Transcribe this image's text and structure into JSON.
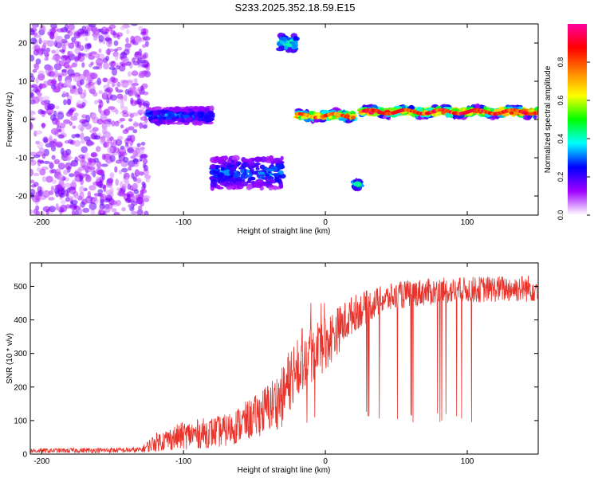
{
  "figure_title": "S233.2025.352.18.59.E15",
  "chart_data": [
    {
      "type": "heatmap",
      "title": "S233.2025.352.18.59.E15",
      "xlabel": "Height of straight line (km)",
      "ylabel": "Frequency (Hz)",
      "xlim": [
        -208,
        150
      ],
      "ylim": [
        -25,
        25
      ],
      "xticks": [
        -200,
        -100,
        0,
        100
      ],
      "yticks": [
        -20,
        -10,
        0,
        10,
        20
      ],
      "colorbar": {
        "label": "Normalized spectral amplitude",
        "range": [
          0,
          1
        ],
        "ticks": [
          0.0,
          0.2,
          0.4,
          0.6,
          0.8
        ],
        "colormap": [
          "#ffffff",
          "#a000ff",
          "#0000ff",
          "#00ffff",
          "#00ff00",
          "#ffff00",
          "#ff8000",
          "#ff0000",
          "#ff00a0"
        ]
      },
      "regions": [
        {
          "name": "scattered noise",
          "x": [
            -208,
            -125
          ],
          "f": [
            -25,
            25
          ],
          "amp": 0.12
        },
        {
          "name": "band 1",
          "x": [
            -125,
            -80
          ],
          "f_center": 1,
          "f_width": 4,
          "amp": 0.3
        },
        {
          "name": "band 2",
          "x": [
            -80,
            -30
          ],
          "f_center": -14,
          "f_width": 8,
          "amp": 0.3
        },
        {
          "name": "spot A",
          "x": [
            -32,
            -20
          ],
          "f_center": 20,
          "f_width": 4,
          "amp": 0.45
        },
        {
          "name": "spot B",
          "x": [
            20,
            25
          ],
          "f_center": -17,
          "f_width": 2,
          "amp": 0.45
        },
        {
          "name": "line 1",
          "x": [
            -20,
            20
          ],
          "f_center": 1,
          "f_width": 2,
          "amp": 0.75
        },
        {
          "name": "line 2",
          "x": [
            25,
            150
          ],
          "f_center": 2,
          "f_width": 2,
          "amp": 0.85
        }
      ]
    },
    {
      "type": "line",
      "xlabel": "Height of straight line (km)",
      "ylabel": "SNR (10 * v/v)",
      "xlim": [
        -208,
        150
      ],
      "ylim": [
        0,
        570
      ],
      "xticks": [
        -200,
        -100,
        0,
        100
      ],
      "yticks": [
        0,
        100,
        200,
        300,
        400,
        500
      ],
      "color": "#e8322a",
      "series": [
        {
          "name": "SNR",
          "envelope": [
            {
              "x": -208,
              "base": 10,
              "spread": 10
            },
            {
              "x": -130,
              "base": 12,
              "spread": 12
            },
            {
              "x": -120,
              "base": 35,
              "spread": 40
            },
            {
              "x": -100,
              "base": 55,
              "spread": 60
            },
            {
              "x": -70,
              "base": 70,
              "spread": 70
            },
            {
              "x": -50,
              "base": 110,
              "spread": 90
            },
            {
              "x": -30,
              "base": 170,
              "spread": 130
            },
            {
              "x": -20,
              "base": 280,
              "spread": 150
            },
            {
              "x": 0,
              "base": 330,
              "spread": 120
            },
            {
              "x": 20,
              "base": 420,
              "spread": 80
            },
            {
              "x": 40,
              "base": 460,
              "spread": 60
            },
            {
              "x": 60,
              "base": 480,
              "spread": 60
            },
            {
              "x": 100,
              "base": 490,
              "spread": 55
            },
            {
              "x": 150,
              "base": 495,
              "spread": 60
            }
          ]
        }
      ]
    }
  ]
}
